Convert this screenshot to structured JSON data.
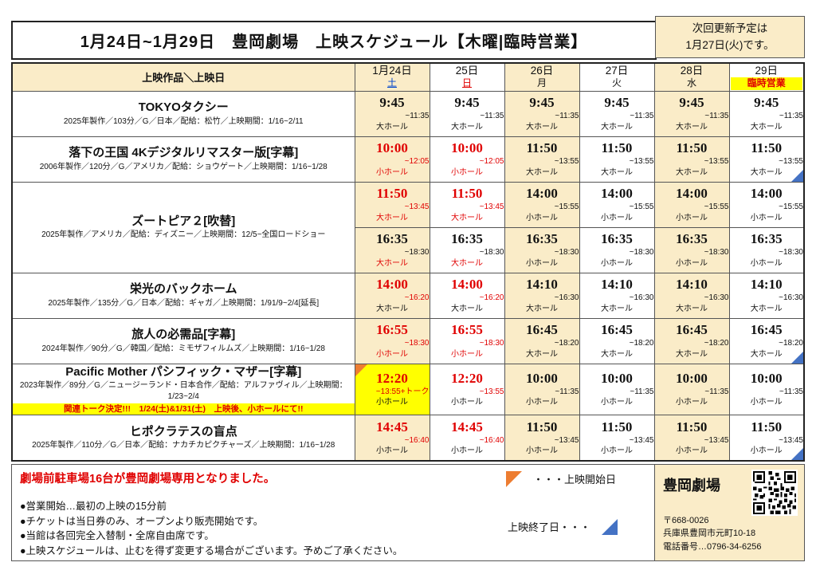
{
  "header": {
    "title": "1月24日~1月29日　豊岡劇場　上映スケジュール【木曜|臨時営業】",
    "update_line1": "次回更新予定は",
    "update_line2": "1月27日(火)です。"
  },
  "colors": {
    "accent_red": "#e00000",
    "shaded_beige": "#faecc8",
    "highlight_yellow": "#ffff00",
    "saturday_blue": "#0044cc",
    "opening_triangle_orange": "#ed7d31",
    "closing_triangle_blue": "#4472c4"
  },
  "table": {
    "corner_label": "上映作品＼上映日",
    "days": [
      {
        "date": "1月24日",
        "dow": "土",
        "dow_color": "#0044cc",
        "underline": true,
        "shaded": true,
        "special": false
      },
      {
        "date": "25日",
        "dow": "日",
        "dow_color": "#e00000",
        "underline": true,
        "shaded": false,
        "special": false
      },
      {
        "date": "26日",
        "dow": "月",
        "dow_color": "#111111",
        "underline": false,
        "shaded": true,
        "special": false
      },
      {
        "date": "27日",
        "dow": "火",
        "dow_color": "#111111",
        "underline": false,
        "shaded": false,
        "special": false
      },
      {
        "date": "28日",
        "dow": "水",
        "dow_color": "#111111",
        "underline": false,
        "shaded": true,
        "special": false
      },
      {
        "date": "29日",
        "dow": "臨時営業",
        "dow_color": "#e00000",
        "underline": false,
        "shaded": false,
        "special": true
      }
    ],
    "movies": [
      {
        "title": "TOKYOタクシー",
        "info": "2025年製作／103分／G／日本／配給：松竹／上映期間：1/16~2/11",
        "slots": [
          [
            {
              "t": "9:45",
              "r": "~11:35",
              "h": "大ホール"
            },
            {
              "t": "9:45",
              "r": "~11:35",
              "h": "大ホール"
            },
            {
              "t": "9:45",
              "r": "~11:35",
              "h": "大ホール"
            },
            {
              "t": "9:45",
              "r": "~11:35",
              "h": "大ホール"
            },
            {
              "t": "9:45",
              "r": "~11:35",
              "h": "大ホール"
            },
            {
              "t": "9:45",
              "r": "~11:35",
              "h": "大ホール"
            }
          ]
        ]
      },
      {
        "title": "落下の王国 4Kデジタルリマスター版[字幕]",
        "info": "2006年製作／120分／G／アメリカ／配給：ショウゲート／上映期間：1/16~1/28",
        "slots": [
          [
            {
              "t": "10:00",
              "r": "~12:05",
              "h": "小ホール",
              "tc": "r",
              "rc": "r",
              "hc": "r"
            },
            {
              "t": "10:00",
              "r": "~12:05",
              "h": "小ホール",
              "tc": "r",
              "rc": "r",
              "hc": "r"
            },
            {
              "t": "11:50",
              "r": "~13:55",
              "h": "大ホール"
            },
            {
              "t": "11:50",
              "r": "~13:55",
              "h": "大ホール"
            },
            {
              "t": "11:50",
              "r": "~13:55",
              "h": "大ホール"
            },
            {
              "t": "11:50",
              "r": "~13:55",
              "h": "大ホール",
              "tri": "e"
            }
          ]
        ]
      },
      {
        "title": "ズートピア２[吹替]",
        "info": "2025年製作／アメリカ／配給：ディズニー／上映期間：12/5~全国ロードショー",
        "slots": [
          [
            {
              "t": "11:50",
              "r": "~13:45",
              "h": "大ホール",
              "tc": "r",
              "rc": "r",
              "hc": "r"
            },
            {
              "t": "11:50",
              "r": "~13:45",
              "h": "大ホール",
              "tc": "r",
              "rc": "r",
              "hc": "r"
            },
            {
              "t": "14:00",
              "r": "~15:55",
              "h": "小ホール"
            },
            {
              "t": "14:00",
              "r": "~15:55",
              "h": "小ホール"
            },
            {
              "t": "14:00",
              "r": "~15:55",
              "h": "小ホール"
            },
            {
              "t": "14:00",
              "r": "~15:55",
              "h": "小ホール"
            }
          ],
          [
            {
              "t": "16:35",
              "r": "~18:30",
              "h": "大ホール",
              "hc": "r"
            },
            {
              "t": "16:35",
              "r": "~18:30",
              "h": "大ホール",
              "hc": "r"
            },
            {
              "t": "16:35",
              "r": "~18:30",
              "h": "小ホール"
            },
            {
              "t": "16:35",
              "r": "~18:30",
              "h": "小ホール"
            },
            {
              "t": "16:35",
              "r": "~18:30",
              "h": "小ホール"
            },
            {
              "t": "16:35",
              "r": "~18:30",
              "h": "小ホール"
            }
          ]
        ]
      },
      {
        "title": "栄光のバックホーム",
        "info": "2025年製作／135分／G／日本／配給：ギャガ／上映期間：1/91/9~2/4[延長]",
        "slots": [
          [
            {
              "t": "14:00",
              "r": "~16:20",
              "h": "大ホール",
              "tc": "r",
              "rc": "r"
            },
            {
              "t": "14:00",
              "r": "~16:20",
              "h": "大ホール",
              "tc": "r",
              "rc": "r"
            },
            {
              "t": "14:10",
              "r": "~16:30",
              "h": "大ホール"
            },
            {
              "t": "14:10",
              "r": "~16:30",
              "h": "大ホール"
            },
            {
              "t": "14:10",
              "r": "~16:30",
              "h": "大ホール"
            },
            {
              "t": "14:10",
              "r": "~16:30",
              "h": "大ホール"
            }
          ]
        ]
      },
      {
        "title": "旅人の必需品[字幕]",
        "info": "2024年製作／90分／G／韓国／配給：ミモザフィルムズ／上映期間：1/16~1/28",
        "slots": [
          [
            {
              "t": "16:55",
              "r": "~18:30",
              "h": "小ホール",
              "tc": "r",
              "rc": "r",
              "hc": "r"
            },
            {
              "t": "16:55",
              "r": "~18:30",
              "h": "小ホール",
              "tc": "r",
              "rc": "r",
              "hc": "r"
            },
            {
              "t": "16:45",
              "r": "~18:20",
              "h": "大ホール"
            },
            {
              "t": "16:45",
              "r": "~18:20",
              "h": "大ホール"
            },
            {
              "t": "16:45",
              "r": "~18:20",
              "h": "大ホール"
            },
            {
              "t": "16:45",
              "r": "~18:20",
              "h": "大ホール",
              "tri": "e"
            }
          ]
        ]
      },
      {
        "title": "Pacific Mother パシフィック・マザー[字幕]",
        "info": "2023年製作／89分／G／ニュージーランド・日本合作／配給：アルファヴィル／上映期間：1/23~2/4",
        "note": "関連トーク決定!!!　1/24(土)&1/31(土)　上映後、小ホールにて!!",
        "slots": [
          [
            {
              "t": "12:20",
              "r": "~13:55+トーク",
              "h": "小ホール",
              "tc": "r",
              "rc": "r",
              "bg": "yellow",
              "tri": "s"
            },
            {
              "t": "12:20",
              "r": "~13:55",
              "h": "小ホール",
              "tc": "r",
              "rc": "r"
            },
            {
              "t": "10:00",
              "r": "~11:35",
              "h": "小ホール"
            },
            {
              "t": "10:00",
              "r": "~11:35",
              "h": "小ホール"
            },
            {
              "t": "10:00",
              "r": "~11:35",
              "h": "小ホール"
            },
            {
              "t": "10:00",
              "r": "~11:35",
              "h": "小ホール"
            }
          ]
        ]
      },
      {
        "title": "ヒポクラテスの盲点",
        "info": "2025年製作／110分／G／日本／配給：ナカチカピクチャーズ／上映期間：1/16~1/28",
        "slots": [
          [
            {
              "t": "14:45",
              "r": "~16:40",
              "h": "小ホール",
              "tc": "r",
              "rc": "r"
            },
            {
              "t": "14:45",
              "r": "~16:40",
              "h": "小ホール",
              "tc": "r",
              "rc": "r"
            },
            {
              "t": "11:50",
              "r": "~13:45",
              "h": "小ホール"
            },
            {
              "t": "11:50",
              "r": "~13:45",
              "h": "小ホール"
            },
            {
              "t": "11:50",
              "r": "~13:45",
              "h": "小ホール"
            },
            {
              "t": "11:50",
              "r": "~13:45",
              "h": "小ホール",
              "tri": "e"
            }
          ]
        ]
      }
    ]
  },
  "bottom": {
    "parking_notice": "劇場前駐車場16台が豊岡劇場専用となりました。",
    "notes": [
      "●営業開始…最初の上映の15分前",
      "●チケットは当日券のみ、オープンより販売開始です。",
      "●当館は各回完全入替制・全席自由席です。",
      "●上映スケジュールは、止むを得ず変更する場合がございます。予めご了承ください。"
    ],
    "legend": {
      "start_text": "・・・上映開始日",
      "end_text": "上映終了日・・・"
    },
    "theater": {
      "name": "豊岡劇場",
      "postal": "〒668-0026",
      "address": "兵庫県豊岡市元町10-18",
      "phone": "電話番号…0796-34-6256"
    }
  }
}
